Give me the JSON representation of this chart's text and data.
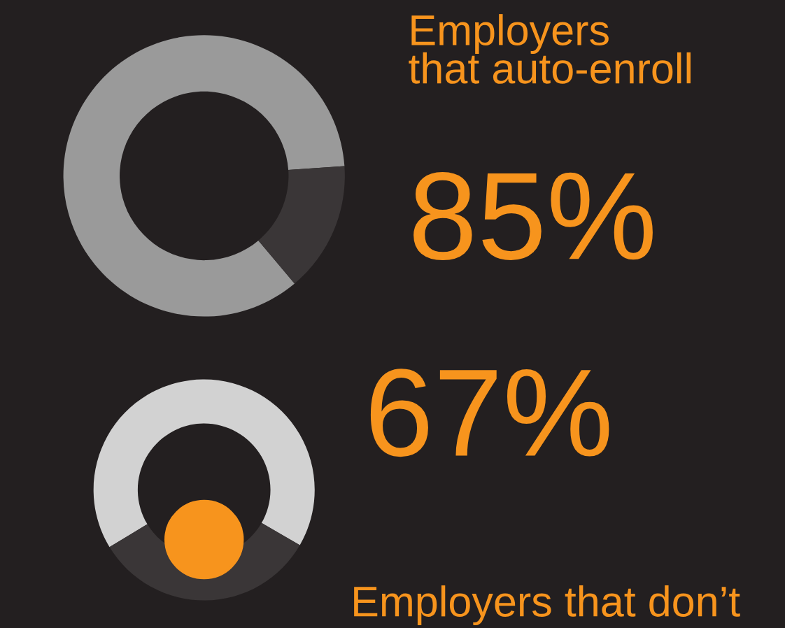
{
  "chart_data": [
    {
      "type": "donut",
      "title": "Employers\nthat auto-enroll",
      "categories": [
        null,
        null
      ],
      "values": [
        85,
        15
      ],
      "colors": [
        "#9a9a9a",
        "#3a3637"
      ],
      "value_labels": [
        "85%",
        null
      ]
    },
    {
      "type": "donut",
      "title": "Employers that don’t",
      "categories": [
        null,
        null
      ],
      "values": [
        67,
        33
      ],
      "colors": [
        "#d2d2d2",
        "#3a3637"
      ],
      "value_labels": [
        "67%",
        null
      ]
    }
  ]
}
